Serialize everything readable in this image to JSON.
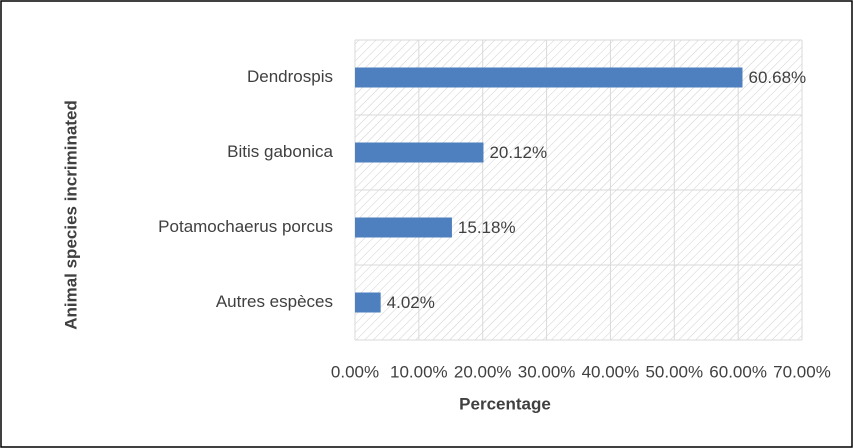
{
  "chart_data": {
    "type": "hbar",
    "categories": [
      "Dendrospis",
      "Bitis gabonica",
      "Potamochaerus porcus",
      "Autres espèces"
    ],
    "values": [
      60.68,
      20.12,
      15.18,
      4.02
    ],
    "value_labels": [
      "60.68%",
      "20.12%",
      "15.18%",
      "4.02%"
    ],
    "color": "#4e7fbf",
    "xlabel": "Percentage",
    "ylabel": "Animal species incriminated",
    "xlim": [
      0,
      70
    ],
    "xticks": [
      {
        "value": 0,
        "label": "0.00%"
      },
      {
        "value": 10,
        "label": "10.00%"
      },
      {
        "value": 20,
        "label": "20.00%"
      },
      {
        "value": 30,
        "label": "30.00%"
      },
      {
        "value": 40,
        "label": "40.00%"
      },
      {
        "value": 50,
        "label": "50.00%"
      },
      {
        "value": 60,
        "label": "60.00%"
      },
      {
        "value": 70,
        "label": "70.00%"
      }
    ],
    "grid": true
  }
}
